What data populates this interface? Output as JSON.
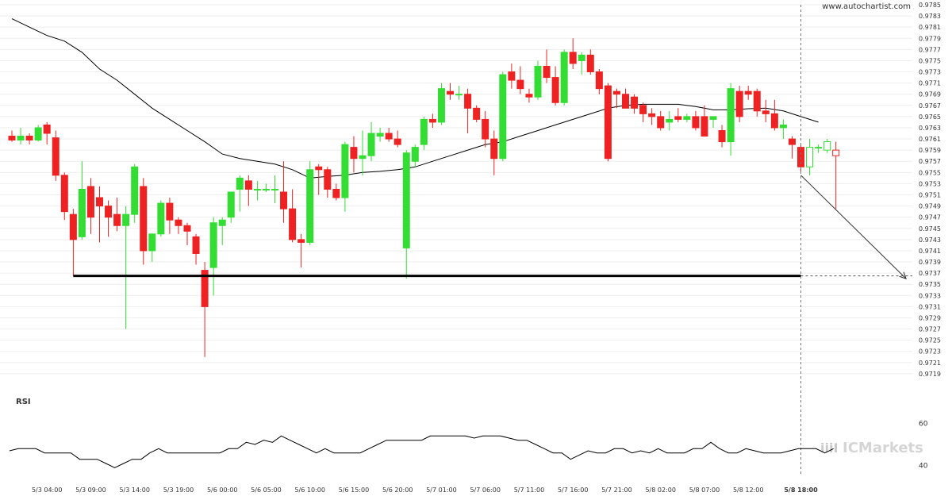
{
  "header": {
    "source": "www.autochartist.com"
  },
  "branding": {
    "logo_text": "ICMarkets",
    "logo_mark": "iiiI"
  },
  "colors": {
    "up": "#33dd33",
    "down": "#ee2222",
    "line": "#000000",
    "grid": "#eeeeee",
    "axis_text": "#333333"
  },
  "chart_data": {
    "type": "candlestick",
    "title": "",
    "xlabel": "",
    "ylabel": "",
    "ylim": [
      0.9717,
      0.9785
    ],
    "y_ticks": [
      "0.9785",
      "0.9783",
      "0.9781",
      "0.9779",
      "0.9777",
      "0.9775",
      "0.9773",
      "0.9771",
      "0.9769",
      "0.9767",
      "0.9765",
      "0.9763",
      "0.9761",
      "0.9759",
      "0.9757",
      "0.9755",
      "0.9753",
      "0.9751",
      "0.9749",
      "0.9747",
      "0.9745",
      "0.9743",
      "0.9741",
      "0.9739",
      "0.9737",
      "0.9735",
      "0.9733",
      "0.9731",
      "0.9729",
      "0.9727",
      "0.9725",
      "0.9723",
      "0.9721",
      "0.9719"
    ],
    "x_labels": [
      {
        "label": "5/3 04:00",
        "index": 4
      },
      {
        "label": "5/3 09:00",
        "index": 9
      },
      {
        "label": "5/3 14:00",
        "index": 14
      },
      {
        "label": "5/3 19:00",
        "index": 19
      },
      {
        "label": "5/6 00:00",
        "index": 24
      },
      {
        "label": "5/6 05:00",
        "index": 29
      },
      {
        "label": "5/6 10:00",
        "index": 34
      },
      {
        "label": "5/6 15:00",
        "index": 39
      },
      {
        "label": "5/6 20:00",
        "index": 44
      },
      {
        "label": "5/7 01:00",
        "index": 49
      },
      {
        "label": "5/7 06:00",
        "index": 54
      },
      {
        "label": "5/7 11:00",
        "index": 59
      },
      {
        "label": "5/7 16:00",
        "index": 64
      },
      {
        "label": "5/7 21:00",
        "index": 69
      },
      {
        "label": "5/8 02:00",
        "index": 74
      },
      {
        "label": "5/8 07:00",
        "index": 79
      },
      {
        "label": "5/8 12:00",
        "index": 84
      },
      {
        "label": "5/8 18:00",
        "index": 90
      }
    ],
    "current_index": 90,
    "ohlc": [
      [
        0.97615,
        0.97625,
        0.97605,
        0.97608
      ],
      [
        0.97608,
        0.9763,
        0.976,
        0.97615
      ],
      [
        0.97615,
        0.9762,
        0.976,
        0.97608
      ],
      [
        0.97608,
        0.97635,
        0.97605,
        0.9763
      ],
      [
        0.97635,
        0.9764,
        0.976,
        0.9762
      ],
      [
        0.97612,
        0.97625,
        0.97535,
        0.97545
      ],
      [
        0.97545,
        0.9755,
        0.97465,
        0.9748
      ],
      [
        0.97475,
        0.97485,
        0.97365,
        0.9743
      ],
      [
        0.97435,
        0.9757,
        0.9743,
        0.9752
      ],
      [
        0.97525,
        0.9754,
        0.9744,
        0.9747
      ],
      [
        0.97505,
        0.97525,
        0.97425,
        0.9749
      ],
      [
        0.9749,
        0.975,
        0.97435,
        0.9747
      ],
      [
        0.97475,
        0.97505,
        0.97445,
        0.97455
      ],
      [
        0.97455,
        0.9749,
        0.9727,
        0.97475
      ],
      [
        0.97475,
        0.97565,
        0.9746,
        0.9756
      ],
      [
        0.97525,
        0.9754,
        0.97385,
        0.9741
      ],
      [
        0.9741,
        0.9744,
        0.9739,
        0.9744
      ],
      [
        0.9744,
        0.975,
        0.97435,
        0.97495
      ],
      [
        0.97495,
        0.97505,
        0.9744,
        0.97465
      ],
      [
        0.97465,
        0.9747,
        0.9744,
        0.97455
      ],
      [
        0.97455,
        0.9746,
        0.9742,
        0.97445
      ],
      [
        0.97435,
        0.9744,
        0.97385,
        0.97405
      ],
      [
        0.97375,
        0.9739,
        0.9722,
        0.9731
      ],
      [
        0.9738,
        0.9747,
        0.9733,
        0.9746
      ],
      [
        0.97455,
        0.9747,
        0.9742,
        0.97465
      ],
      [
        0.9747,
        0.97515,
        0.9746,
        0.97515
      ],
      [
        0.9752,
        0.97545,
        0.9748,
        0.9754
      ],
      [
        0.97535,
        0.97545,
        0.9749,
        0.9752
      ],
      [
        0.9752,
        0.97535,
        0.975,
        0.9752
      ],
      [
        0.9752,
        0.9753,
        0.97515,
        0.9752
      ],
      [
        0.9752,
        0.97545,
        0.97495,
        0.9752
      ],
      [
        0.97515,
        0.9757,
        0.9746,
        0.97485
      ],
      [
        0.97485,
        0.9752,
        0.97425,
        0.9743
      ],
      [
        0.9743,
        0.9744,
        0.9738,
        0.97425
      ],
      [
        0.97425,
        0.9757,
        0.9742,
        0.97555
      ],
      [
        0.9756,
        0.97565,
        0.9751,
        0.97555
      ],
      [
        0.97555,
        0.9756,
        0.97505,
        0.9752
      ],
      [
        0.9752,
        0.9753,
        0.975,
        0.97505
      ],
      [
        0.97505,
        0.97605,
        0.9748,
        0.976
      ],
      [
        0.97595,
        0.97615,
        0.9755,
        0.97575
      ],
      [
        0.97575,
        0.97625,
        0.97545,
        0.9758
      ],
      [
        0.9758,
        0.9764,
        0.9757,
        0.9762
      ],
      [
        0.97615,
        0.9763,
        0.97605,
        0.9762
      ],
      [
        0.9762,
        0.9763,
        0.97605,
        0.9761
      ],
      [
        0.9761,
        0.97625,
        0.97595,
        0.976
      ],
      [
        0.97415,
        0.9759,
        0.9736,
        0.97585
      ],
      [
        0.9757,
        0.976,
        0.9756,
        0.97595
      ],
      [
        0.976,
        0.9765,
        0.9759,
        0.97645
      ],
      [
        0.97645,
        0.97655,
        0.9763,
        0.9764
      ],
      [
        0.9764,
        0.9771,
        0.97635,
        0.977
      ],
      [
        0.97695,
        0.9771,
        0.9768,
        0.9769
      ],
      [
        0.9769,
        0.97705,
        0.9768,
        0.9769
      ],
      [
        0.9769,
        0.977,
        0.9762,
        0.97665
      ],
      [
        0.97665,
        0.9767,
        0.9764,
        0.97645
      ],
      [
        0.97645,
        0.9766,
        0.97595,
        0.9761
      ],
      [
        0.9761,
        0.97625,
        0.97545,
        0.97575
      ],
      [
        0.97575,
        0.9773,
        0.9757,
        0.97725
      ],
      [
        0.9773,
        0.97745,
        0.977,
        0.97715
      ],
      [
        0.97715,
        0.9774,
        0.9769,
        0.977
      ],
      [
        0.9769,
        0.977,
        0.97675,
        0.97685
      ],
      [
        0.97685,
        0.9775,
        0.9768,
        0.9774
      ],
      [
        0.9774,
        0.9777,
        0.9771,
        0.9772
      ],
      [
        0.9772,
        0.9774,
        0.9767,
        0.97675
      ],
      [
        0.97675,
        0.9777,
        0.9767,
        0.97765
      ],
      [
        0.97765,
        0.9779,
        0.97735,
        0.97745
      ],
      [
        0.9775,
        0.97765,
        0.97725,
        0.9776
      ],
      [
        0.9776,
        0.9777,
        0.97725,
        0.9773
      ],
      [
        0.9773,
        0.97735,
        0.9769,
        0.977
      ],
      [
        0.97705,
        0.9771,
        0.9757,
        0.97575
      ],
      [
        0.97695,
        0.977,
        0.97665,
        0.9769
      ],
      [
        0.9769,
        0.977,
        0.97665,
        0.97665
      ],
      [
        0.97685,
        0.9769,
        0.97655,
        0.97665
      ],
      [
        0.9767,
        0.97675,
        0.9764,
        0.97655
      ],
      [
        0.97655,
        0.97665,
        0.97635,
        0.9765
      ],
      [
        0.9765,
        0.9766,
        0.97625,
        0.9763
      ],
      [
        0.9764,
        0.9766,
        0.97625,
        0.97645
      ],
      [
        0.9765,
        0.97665,
        0.9764,
        0.97645
      ],
      [
        0.97645,
        0.97655,
        0.9764,
        0.9765
      ],
      [
        0.9765,
        0.9766,
        0.97625,
        0.9763
      ],
      [
        0.9765,
        0.9767,
        0.97615,
        0.97615
      ],
      [
        0.97645,
        0.9765,
        0.9763,
        0.9765
      ],
      [
        0.97625,
        0.97635,
        0.97595,
        0.97605
      ],
      [
        0.97605,
        0.9771,
        0.9758,
        0.977
      ],
      [
        0.97695,
        0.97705,
        0.9764,
        0.9765
      ],
      [
        0.97695,
        0.97705,
        0.9768,
        0.9769
      ],
      [
        0.97695,
        0.977,
        0.9765,
        0.9766
      ],
      [
        0.9766,
        0.9768,
        0.9764,
        0.97655
      ],
      [
        0.97655,
        0.9768,
        0.97625,
        0.9763
      ],
      [
        0.9763,
        0.97645,
        0.9761,
        0.97635
      ],
      [
        0.9761,
        0.97615,
        0.97575,
        0.976
      ],
      [
        0.97595,
        0.976,
        0.9755,
        0.9756
      ],
      [
        0.9756,
        0.9761,
        0.97545,
        0.97595
      ],
      [
        0.97595,
        0.976,
        0.97585,
        0.97595
      ],
      [
        0.9759,
        0.9761,
        0.97585,
        0.97605
      ],
      [
        0.9759,
        0.97605,
        0.97485,
        0.9758
      ]
    ],
    "moving_average": [
      [
        0,
        0.97825
      ],
      [
        2,
        0.9781
      ],
      [
        4,
        0.97795
      ],
      [
        6,
        0.97785
      ],
      [
        8,
        0.97765
      ],
      [
        10,
        0.97735
      ],
      [
        12,
        0.97715
      ],
      [
        14,
        0.9769
      ],
      [
        16,
        0.97665
      ],
      [
        18,
        0.97645
      ],
      [
        20,
        0.97625
      ],
      [
        22,
        0.97605
      ],
      [
        24,
        0.97583
      ],
      [
        26,
        0.97575
      ],
      [
        28,
        0.9757
      ],
      [
        30,
        0.97565
      ],
      [
        32,
        0.97555
      ],
      [
        34,
        0.9754
      ],
      [
        36,
        0.97543
      ],
      [
        38,
        0.97545
      ],
      [
        40,
        0.9755
      ],
      [
        42,
        0.97552
      ],
      [
        44,
        0.97555
      ],
      [
        46,
        0.9756
      ],
      [
        48,
        0.9757
      ],
      [
        50,
        0.9758
      ],
      [
        52,
        0.9759
      ],
      [
        54,
        0.976
      ],
      [
        56,
        0.97605
      ],
      [
        58,
        0.97615
      ],
      [
        60,
        0.97625
      ],
      [
        62,
        0.97635
      ],
      [
        64,
        0.97645
      ],
      [
        66,
        0.97655
      ],
      [
        68,
        0.97665
      ],
      [
        70,
        0.9767
      ],
      [
        72,
        0.97672
      ],
      [
        74,
        0.97672
      ],
      [
        76,
        0.97672
      ],
      [
        78,
        0.97668
      ],
      [
        80,
        0.97662
      ],
      [
        82,
        0.97662
      ],
      [
        84,
        0.97664
      ],
      [
        86,
        0.97665
      ],
      [
        88,
        0.9766
      ],
      [
        90,
        0.9765
      ],
      [
        92,
        0.9764
      ]
    ],
    "support_line": {
      "value": 0.97365,
      "from_index": 7,
      "to_index": 90
    },
    "projection_arrow": {
      "from": [
        90,
        0.97545
      ],
      "to": [
        102,
        0.9736
      ]
    },
    "rsi": {
      "label": "RSI",
      "levels": [
        60,
        40
      ],
      "range": [
        35,
        65
      ],
      "values": [
        47,
        48,
        48,
        48,
        46,
        46,
        46,
        46,
        43,
        43,
        43,
        41,
        39,
        41,
        43,
        43,
        46,
        48,
        46,
        46,
        46,
        46,
        46,
        46,
        46,
        48,
        48,
        51,
        50,
        52,
        51,
        54,
        52,
        50,
        48,
        46,
        48,
        46,
        46,
        46,
        46,
        48,
        50,
        52,
        52,
        52,
        52,
        52,
        54,
        54,
        54,
        54,
        54,
        53,
        54,
        54,
        54,
        53,
        52,
        52,
        50,
        48,
        46,
        46,
        43,
        45,
        47,
        46,
        46,
        48,
        48,
        46,
        47,
        46,
        48,
        46,
        46,
        46,
        48,
        48,
        51,
        48,
        46,
        46,
        48,
        47,
        46,
        46,
        46,
        47,
        48,
        48,
        48,
        46,
        48
      ]
    }
  }
}
